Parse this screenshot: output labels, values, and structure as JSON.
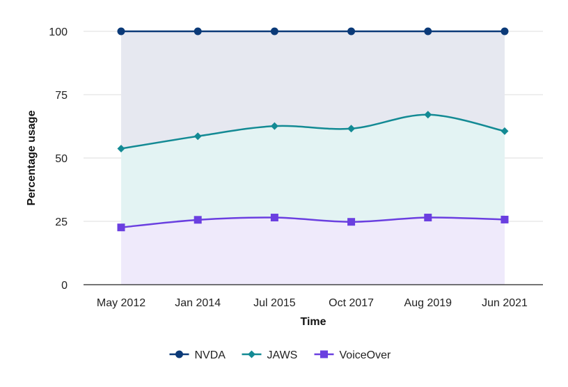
{
  "chart_data": {
    "type": "area",
    "title": "",
    "xlabel": "Time",
    "ylabel": "Percentage usage",
    "categories": [
      "May 2012",
      "Jan 2014",
      "Jul 2015",
      "Oct 2017",
      "Aug 2019",
      "Jun 2021"
    ],
    "ylim": [
      0,
      100
    ],
    "yticks": [
      0,
      25,
      50,
      75,
      100
    ],
    "grid": "horizontal",
    "legend_position": "bottom",
    "series": [
      {
        "name": "NVDA",
        "values": [
          100,
          100,
          100,
          100,
          100,
          100
        ],
        "color": "#0b3a78",
        "fill": "#e6e8f0",
        "marker": "circle"
      },
      {
        "name": "JAWS",
        "values": [
          53.7,
          58.6,
          62.6,
          61.6,
          67.1,
          60.6
        ],
        "color": "#138a94",
        "fill": "#e3f3f3",
        "marker": "diamond"
      },
      {
        "name": "VoiceOver",
        "values": [
          22.6,
          25.6,
          26.5,
          24.8,
          26.5,
          25.7
        ],
        "color": "#6a3fe0",
        "fill": "#efeafb",
        "marker": "square"
      }
    ]
  }
}
